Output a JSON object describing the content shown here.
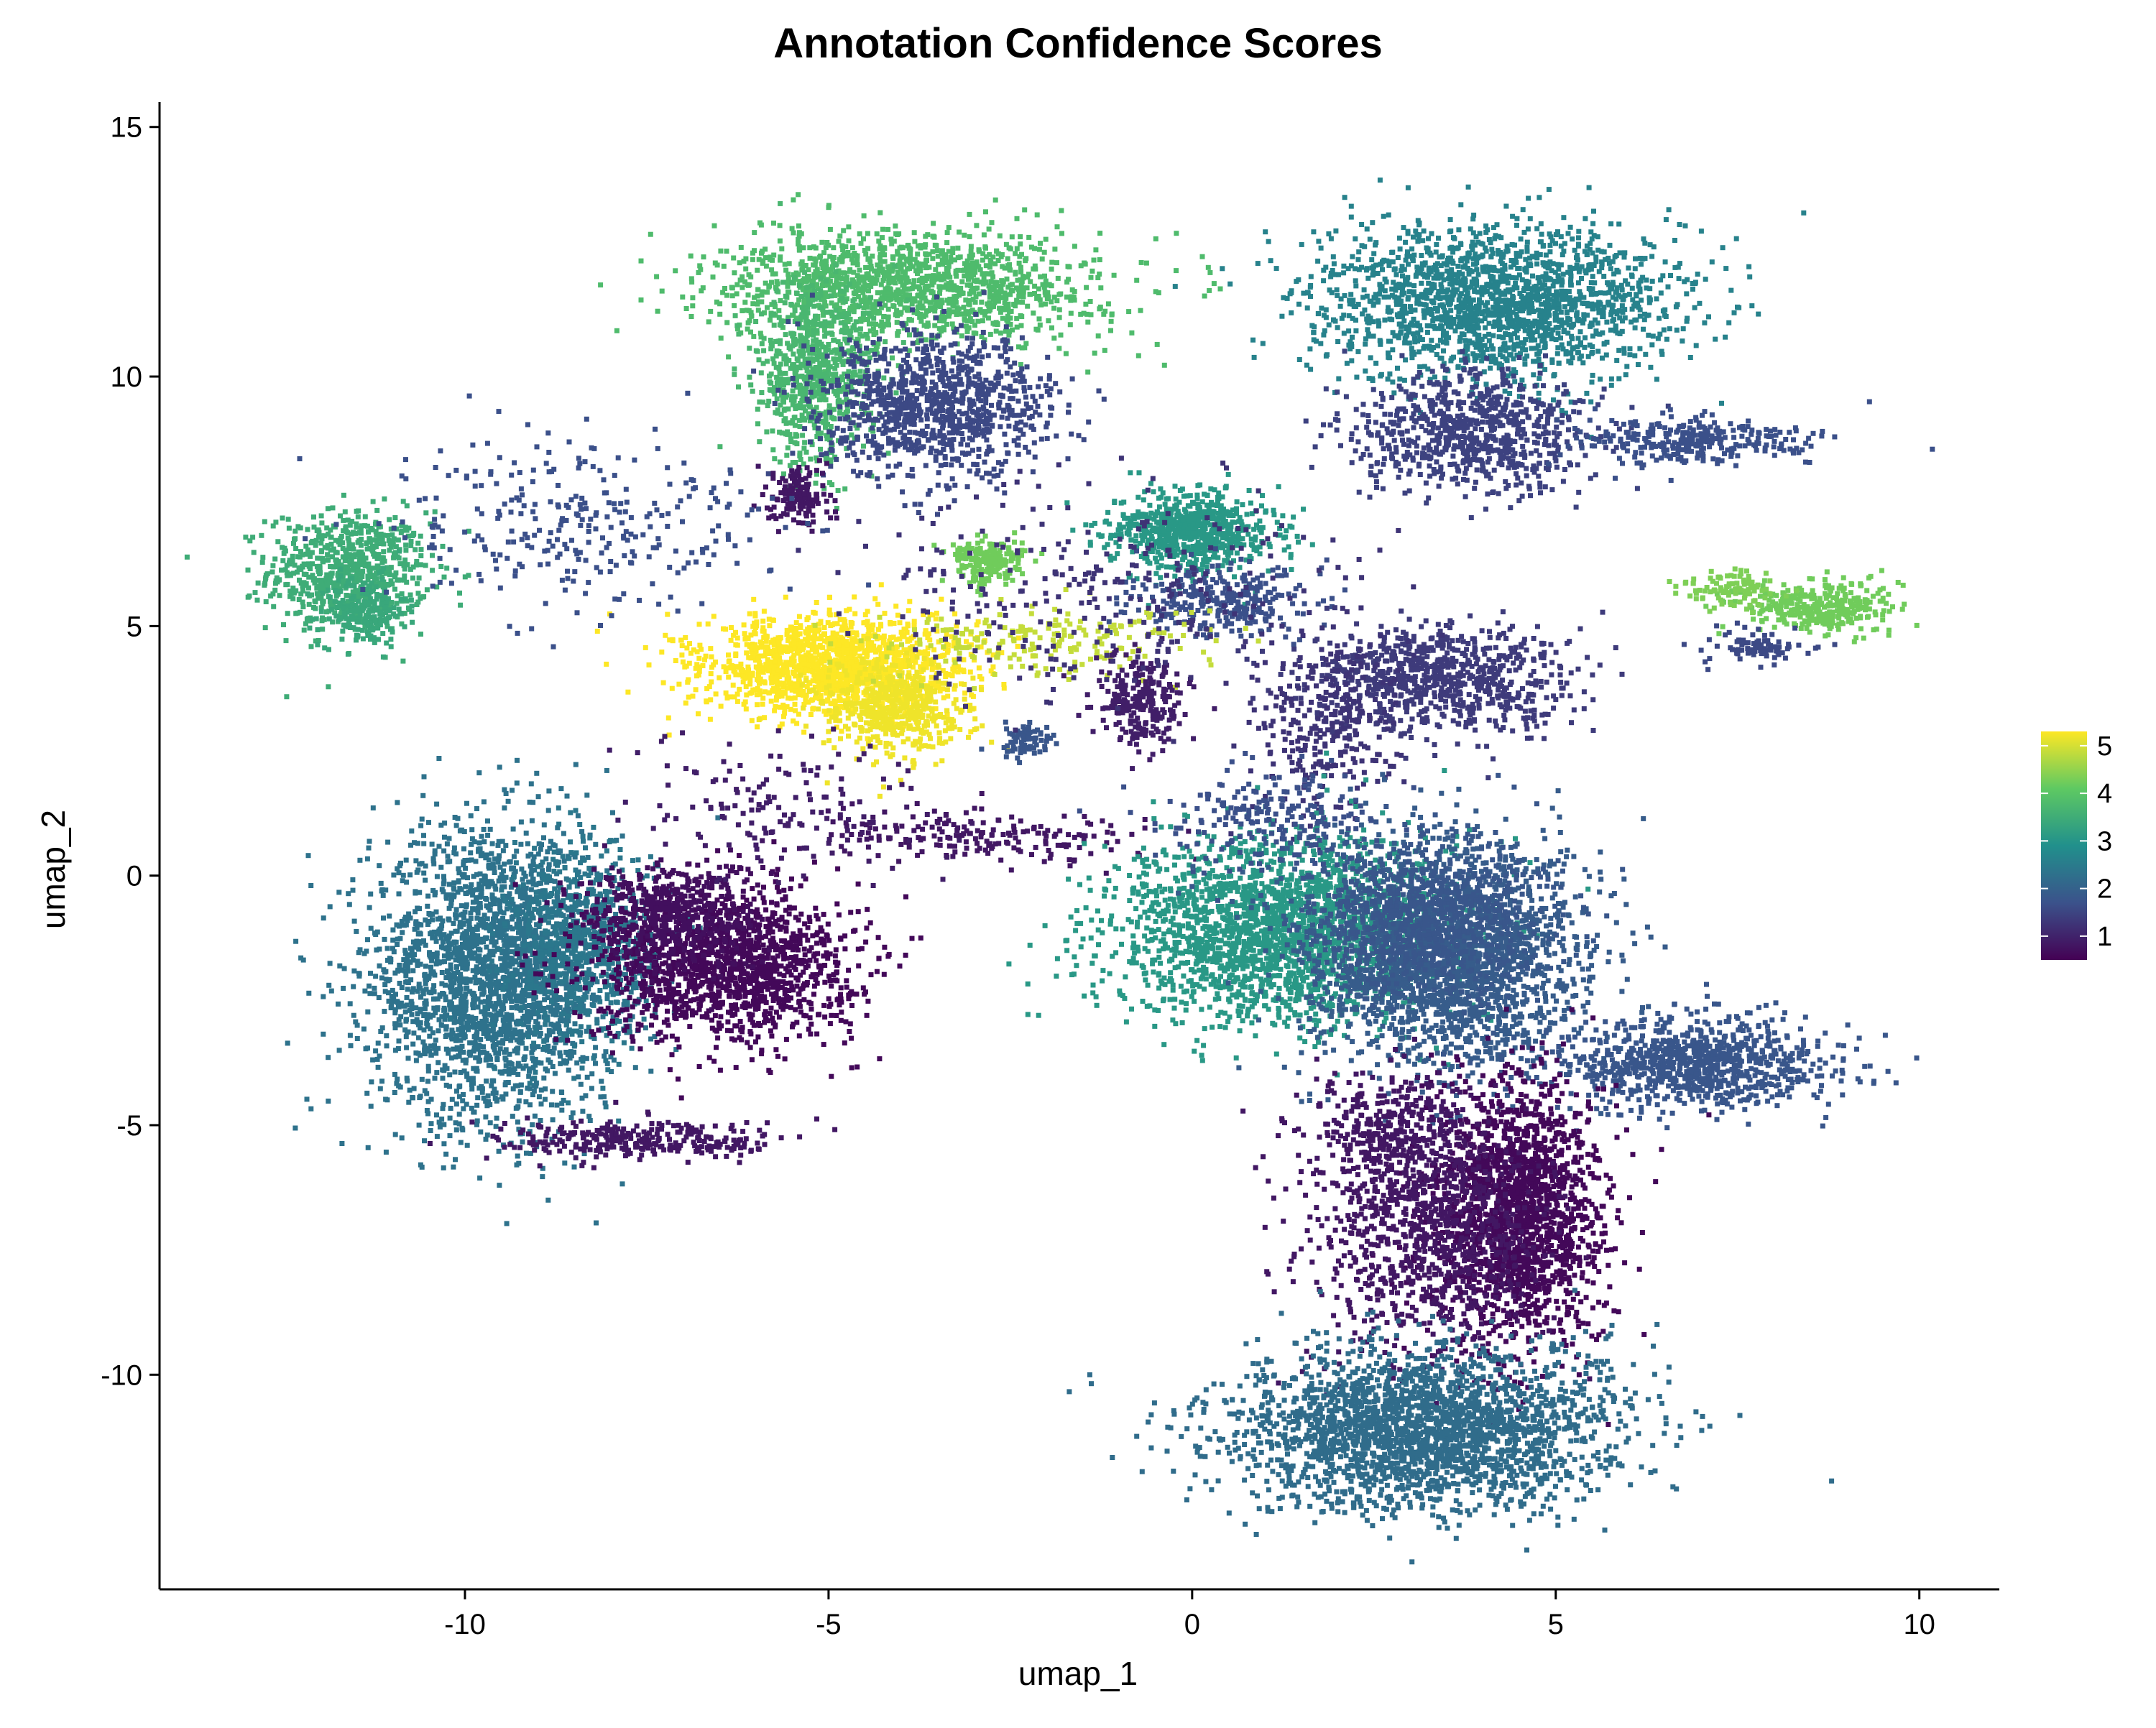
{
  "chart_data": {
    "type": "scatter",
    "title": "Annotation Confidence Scores",
    "xlabel": "umap_1",
    "ylabel": "umap_2",
    "xlim": [
      -14.2,
      11.1
    ],
    "ylim": [
      -14.3,
      15.5
    ],
    "x_ticks": [
      -10,
      -5,
      0,
      5,
      10
    ],
    "y_ticks": [
      -10,
      -5,
      0,
      5,
      10,
      15
    ],
    "grid": false,
    "legend": {
      "placement": "right",
      "kind": "colorbar",
      "ticks": [
        1,
        2,
        3,
        4,
        5
      ],
      "range": [
        0.5,
        5.3
      ],
      "palette": "viridis",
      "colors": [
        "#440154",
        "#3b528b",
        "#21908c",
        "#5ec962",
        "#fde725"
      ]
    },
    "series": [
      {
        "x": -11.6,
        "y": 6.1,
        "score": 3.3,
        "sx": 0.55,
        "sy": 0.6,
        "density": 700
      },
      {
        "x": -11.4,
        "y": 5.3,
        "score": 3.2,
        "sx": 0.3,
        "sy": 0.35,
        "density": 200
      },
      {
        "x": -9.6,
        "y": -2.0,
        "score": 2.2,
        "sx": 0.85,
        "sy": 1.45,
        "density": 2400
      },
      {
        "x": -8.4,
        "y": -1.4,
        "score": 2.3,
        "sx": 0.5,
        "sy": 1.0,
        "density": 700
      },
      {
        "x": -6.4,
        "y": -1.8,
        "score": 0.6,
        "sx": 0.9,
        "sy": 0.75,
        "density": 1400
      },
      {
        "x": -7.2,
        "y": -0.8,
        "score": 0.7,
        "sx": 0.6,
        "sy": 0.55,
        "density": 500
      },
      {
        "x": -7.5,
        "y": -5.3,
        "score": 0.8,
        "sx": 1.0,
        "sy": 0.2,
        "density": 300
      },
      {
        "x": -3.9,
        "y": 11.8,
        "score": 3.6,
        "sx": 1.3,
        "sy": 0.55,
        "density": 1400
      },
      {
        "x": -5.2,
        "y": 10.0,
        "score": 3.5,
        "sx": 0.4,
        "sy": 0.9,
        "density": 700
      },
      {
        "x": -3.5,
        "y": 9.4,
        "score": 1.5,
        "sx": 0.8,
        "sy": 0.7,
        "density": 1000
      },
      {
        "x": -5.4,
        "y": 7.6,
        "score": 0.8,
        "sx": 0.2,
        "sy": 0.3,
        "density": 150
      },
      {
        "x": -2.8,
        "y": 6.3,
        "score": 4.0,
        "sx": 0.25,
        "sy": 0.22,
        "density": 200
      },
      {
        "x": 0.0,
        "y": 6.9,
        "score": 2.9,
        "sx": 0.55,
        "sy": 0.4,
        "density": 700
      },
      {
        "x": 0.4,
        "y": 5.5,
        "score": 1.6,
        "sx": 0.6,
        "sy": 0.35,
        "density": 300
      },
      {
        "x": -4.9,
        "y": 4.2,
        "score": 5.0,
        "sx": 0.9,
        "sy": 0.5,
        "density": 1500
      },
      {
        "x": -4.1,
        "y": 3.3,
        "score": 4.9,
        "sx": 0.5,
        "sy": 0.5,
        "density": 500
      },
      {
        "x": -2.0,
        "y": 4.7,
        "score": 4.6,
        "sx": 1.2,
        "sy": 0.35,
        "density": 200
      },
      {
        "x": -0.7,
        "y": 3.5,
        "score": 0.9,
        "sx": 0.3,
        "sy": 0.5,
        "density": 250
      },
      {
        "x": -2.3,
        "y": 2.7,
        "score": 1.7,
        "sx": 0.2,
        "sy": 0.2,
        "density": 80
      },
      {
        "x": -2.9,
        "y": 0.8,
        "score": 0.8,
        "sx": 1.3,
        "sy": 0.25,
        "density": 200
      },
      {
        "x": -5.6,
        "y": 1.3,
        "score": 0.9,
        "sx": 1.0,
        "sy": 0.7,
        "density": 150
      },
      {
        "x": -8.3,
        "y": 7.1,
        "score": 1.6,
        "sx": 1.4,
        "sy": 0.9,
        "density": 300
      },
      {
        "x": 4.2,
        "y": 11.5,
        "score": 2.5,
        "sx": 1.25,
        "sy": 0.75,
        "density": 1800
      },
      {
        "x": 3.8,
        "y": 8.9,
        "score": 1.4,
        "sx": 0.8,
        "sy": 0.6,
        "density": 800
      },
      {
        "x": 6.8,
        "y": 8.7,
        "score": 1.6,
        "sx": 0.8,
        "sy": 0.25,
        "density": 300
      },
      {
        "x": 8.6,
        "y": 5.4,
        "score": 4.0,
        "sx": 0.5,
        "sy": 0.25,
        "density": 350
      },
      {
        "x": 7.4,
        "y": 5.7,
        "score": 4.1,
        "sx": 0.35,
        "sy": 0.2,
        "density": 100
      },
      {
        "x": 7.7,
        "y": 4.6,
        "score": 1.5,
        "sx": 0.4,
        "sy": 0.2,
        "density": 80
      },
      {
        "x": 3.4,
        "y": 3.9,
        "score": 1.3,
        "sx": 0.9,
        "sy": 0.55,
        "density": 800
      },
      {
        "x": 1.8,
        "y": 3.0,
        "score": 1.2,
        "sx": 0.5,
        "sy": 1.0,
        "density": 300
      },
      {
        "x": 1.2,
        "y": -1.1,
        "score": 2.9,
        "sx": 1.15,
        "sy": 0.95,
        "density": 2200
      },
      {
        "x": 3.5,
        "y": -1.6,
        "score": 1.8,
        "sx": 0.95,
        "sy": 1.1,
        "density": 2200
      },
      {
        "x": 3.3,
        "y": -0.8,
        "score": 1.7,
        "sx": 0.8,
        "sy": 0.8,
        "density": 800
      },
      {
        "x": 6.9,
        "y": -3.8,
        "score": 1.7,
        "sx": 0.9,
        "sy": 0.45,
        "density": 900
      },
      {
        "x": 4.5,
        "y": -6.8,
        "score": 0.6,
        "sx": 0.6,
        "sy": 1.3,
        "density": 1800
      },
      {
        "x": 3.2,
        "y": -7.3,
        "score": 0.8,
        "sx": 0.8,
        "sy": 1.2,
        "density": 800
      },
      {
        "x": 2.8,
        "y": -5.2,
        "score": 0.8,
        "sx": 0.6,
        "sy": 0.7,
        "density": 400
      },
      {
        "x": 3.2,
        "y": -11.1,
        "score": 2.1,
        "sx": 1.35,
        "sy": 0.8,
        "density": 2400
      },
      {
        "x": 1.0,
        "y": 1.2,
        "score": 1.6,
        "sx": 0.8,
        "sy": 0.5,
        "density": 200
      },
      {
        "x": -1.2,
        "y": 5.8,
        "score": 1.2,
        "sx": 1.5,
        "sy": 1.0,
        "density": 300
      }
    ]
  }
}
